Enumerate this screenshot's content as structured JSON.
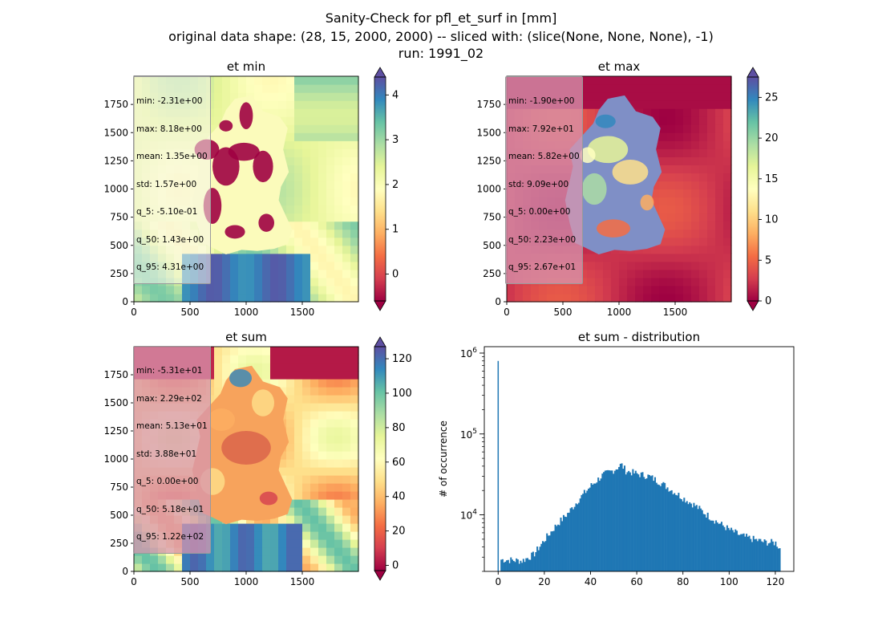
{
  "figure": {
    "title_lines": [
      "Sanity-Check for pfl_et_surf in [mm]",
      "original data shape: (28, 15, 2000, 2000) -- sliced with: (slice(None, None, None), -1)",
      "run: 1991_02"
    ]
  },
  "colormap": "Spectral",
  "chart_data": [
    {
      "type": "heatmap",
      "title": "et min",
      "xticks": [
        "0",
        "500",
        "1000",
        "1500"
      ],
      "yticks": [
        "0",
        "250",
        "500",
        "750",
        "1000",
        "1250",
        "1500",
        "1750"
      ],
      "xlim": [
        0,
        2000
      ],
      "ylim": [
        0,
        2000
      ],
      "colorbar": {
        "ticks": [
          "0",
          "1",
          "2",
          "3",
          "4"
        ],
        "range": [
          -0.6,
          4.4
        ],
        "extend": "both"
      },
      "stats": [
        "min: -2.31e+00",
        "max: 8.18e+00",
        "mean: 1.35e+00",
        "std: 1.57e+00",
        "q_5: -5.10e-01",
        "q_50: 1.43e+00",
        "q_95: 4.31e+00"
      ]
    },
    {
      "type": "heatmap",
      "title": "et max",
      "xticks": [
        "0",
        "500",
        "1000",
        "1500"
      ],
      "yticks": [
        "0",
        "250",
        "500",
        "750",
        "1000",
        "1250",
        "1500",
        "1750"
      ],
      "xlim": [
        0,
        2000
      ],
      "ylim": [
        0,
        2000
      ],
      "colorbar": {
        "ticks": [
          "0",
          "5",
          "10",
          "15",
          "20",
          "25"
        ],
        "range": [
          0,
          27.5
        ],
        "extend": "both"
      },
      "stats": [
        "min: -1.90e+00",
        "max: 7.92e+01",
        "mean: 5.82e+00",
        "std: 9.09e+00",
        "q_5: 0.00e+00",
        "q_50: 2.23e+00",
        "q_95: 2.67e+01"
      ]
    },
    {
      "type": "heatmap",
      "title": "et sum",
      "xticks": [
        "0",
        "500",
        "1000",
        "1500"
      ],
      "yticks": [
        "0",
        "250",
        "500",
        "750",
        "1000",
        "1250",
        "1500",
        "1750"
      ],
      "xlim": [
        0,
        2000
      ],
      "ylim": [
        0,
        2000
      ],
      "colorbar": {
        "ticks": [
          "0",
          "20",
          "40",
          "60",
          "80",
          "100",
          "120"
        ],
        "range": [
          -3,
          127
        ],
        "extend": "both"
      },
      "stats": [
        "min: -5.31e+01",
        "max: 2.29e+02",
        "mean: 5.13e+01",
        "std: 3.88e+01",
        "q_5: 0.00e+00",
        "q_50: 5.18e+01",
        "q_95: 1.22e+02"
      ]
    },
    {
      "type": "bar",
      "title": "et sum - distribution",
      "ylabel": "# of occurrence",
      "xticks": [
        "0",
        "20",
        "40",
        "60",
        "80",
        "100",
        "120"
      ],
      "yticks": [
        "10^4",
        "10^5",
        "10^6"
      ],
      "xlim": [
        -6,
        128
      ],
      "ylim": [
        2000,
        1200000
      ],
      "yscale": "log",
      "color": "#1f77b4",
      "bin_width": 0.6,
      "bins": [
        {
          "x": 0,
          "y": 800000
        },
        {
          "x": 1,
          "y": 2800
        },
        {
          "x": 10,
          "y": 2700
        },
        {
          "x": 15,
          "y": 3200
        },
        {
          "x": 20,
          "y": 5000
        },
        {
          "x": 25,
          "y": 7500
        },
        {
          "x": 30,
          "y": 10500
        },
        {
          "x": 35,
          "y": 16000
        },
        {
          "x": 40,
          "y": 23000
        },
        {
          "x": 45,
          "y": 31000
        },
        {
          "x": 50,
          "y": 36000
        },
        {
          "x": 53,
          "y": 42000
        },
        {
          "x": 55,
          "y": 35000
        },
        {
          "x": 60,
          "y": 32000
        },
        {
          "x": 65,
          "y": 30000
        },
        {
          "x": 70,
          "y": 25000
        },
        {
          "x": 75,
          "y": 20000
        },
        {
          "x": 80,
          "y": 16000
        },
        {
          "x": 85,
          "y": 13000
        },
        {
          "x": 90,
          "y": 10000
        },
        {
          "x": 95,
          "y": 8000
        },
        {
          "x": 100,
          "y": 6500
        },
        {
          "x": 105,
          "y": 5500
        },
        {
          "x": 110,
          "y": 5000
        },
        {
          "x": 115,
          "y": 4600
        },
        {
          "x": 120,
          "y": 4500
        },
        {
          "x": 122,
          "y": 3700
        }
      ]
    }
  ]
}
